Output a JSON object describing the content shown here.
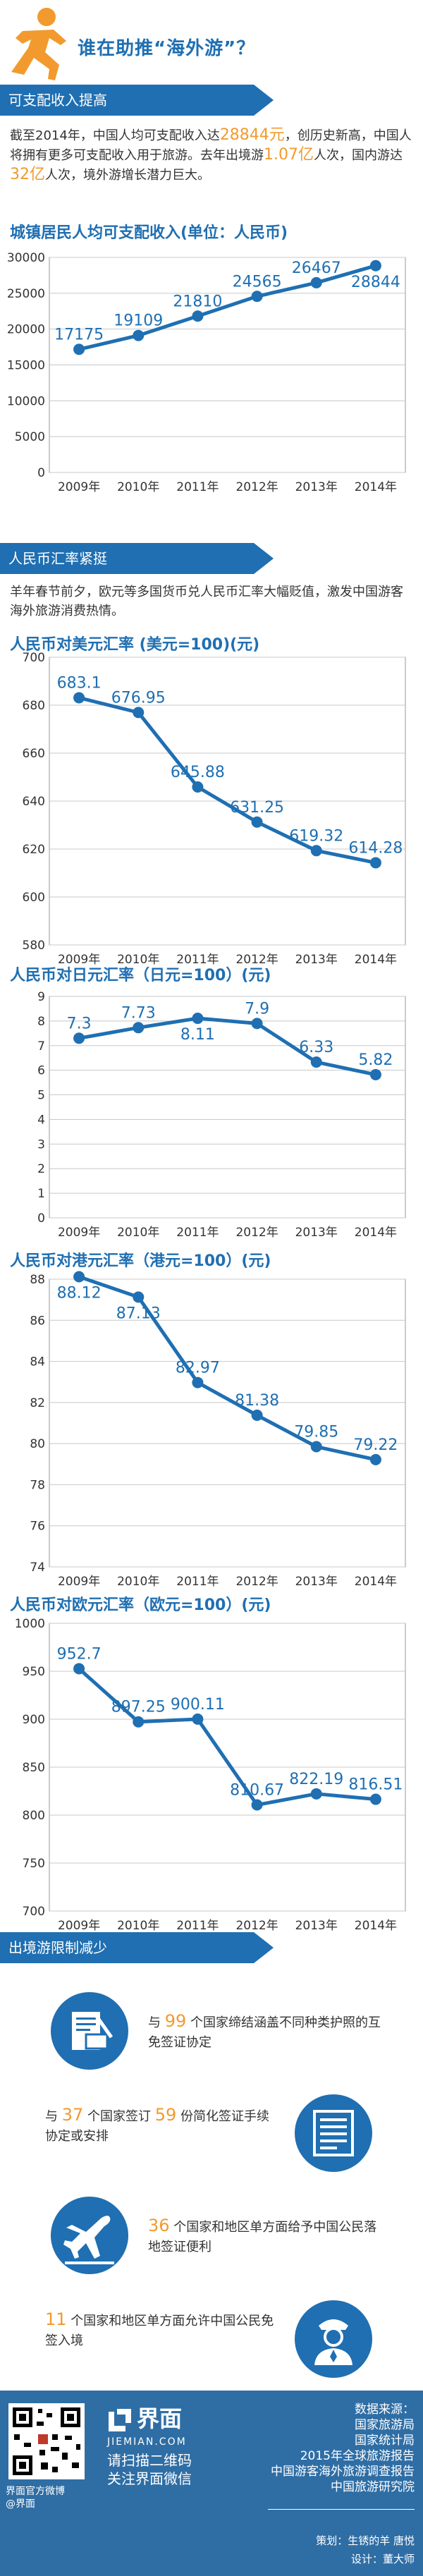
{
  "header": {
    "title": "谁在助推“海外游”？"
  },
  "sections": [
    {
      "label": "可支配收入提高"
    },
    {
      "label": "人民币汇率紧挺"
    },
    {
      "label": "出境游限制减少"
    }
  ],
  "income_para": {
    "p1": "截至2014年，中国人均可支配收入达",
    "v1": "28844元",
    "p2": "，创历史新高，中国人将拥有更多可支配收入用于旅游。去年出境游",
    "v2": "1.07亿",
    "p3": "人次，国内游达",
    "v3": "32亿",
    "p4": "人次，境外游增长潜力巨大。"
  },
  "rate_para": "羊年春节前夕，欧元等多国货币兑人民币汇率大幅贬值，激发中国游客海外旅游消费热情。",
  "chart_data": [
    {
      "type": "line",
      "title": "城镇居民人均可支配收入(单位：人民币)",
      "categories": [
        "2009年",
        "2010年",
        "2011年",
        "2012年",
        "2013年",
        "2014年"
      ],
      "values": [
        17175,
        19109,
        21810,
        24565,
        26467,
        28844
      ],
      "ylim": [
        0,
        30000
      ],
      "yticks": [
        0,
        5000,
        10000,
        15000,
        20000,
        25000,
        30000
      ]
    },
    {
      "type": "line",
      "title": "人民币对美元汇率 (美元=100)(元)",
      "categories": [
        "2009年",
        "2010年",
        "2011年",
        "2012年",
        "2013年",
        "2014年"
      ],
      "values": [
        683.1,
        676.95,
        645.88,
        631.25,
        619.32,
        614.28
      ],
      "ylim": [
        580,
        700
      ],
      "yticks": [
        580,
        600,
        620,
        640,
        660,
        680,
        700
      ]
    },
    {
      "type": "line",
      "title": "人民币对日元汇率（日元=100）(元)",
      "categories": [
        "2009年",
        "2010年",
        "2011年",
        "2012年",
        "2013年",
        "2014年"
      ],
      "values": [
        7.3,
        7.73,
        8.11,
        7.9,
        6.33,
        5.82
      ],
      "ylim": [
        0,
        9
      ],
      "yticks": [
        0,
        1,
        2,
        3,
        4,
        5,
        6,
        7,
        8,
        9
      ]
    },
    {
      "type": "line",
      "title": "人民币对港元汇率（港元=100）(元)",
      "categories": [
        "2009年",
        "2010年",
        "2011年",
        "2012年",
        "2013年",
        "2014年"
      ],
      "values": [
        88.12,
        87.13,
        82.97,
        81.38,
        79.85,
        79.22
      ],
      "ylim": [
        74,
        88
      ],
      "yticks": [
        74,
        76,
        78,
        80,
        82,
        84,
        86,
        88
      ]
    },
    {
      "type": "line",
      "title": "人民币对欧元汇率（欧元=100）(元)",
      "categories": [
        "2009年",
        "2010年",
        "2011年",
        "2012年",
        "2013年",
        "2014年"
      ],
      "values": [
        952.7,
        897.25,
        900.11,
        810.67,
        822.19,
        816.51
      ],
      "ylim": [
        700,
        1000
      ],
      "yticks": [
        700,
        750,
        800,
        850,
        900,
        950,
        1000
      ]
    }
  ],
  "items": [
    {
      "pre": "与 ",
      "num": "99",
      "post": " 个国家缔结涵盖不同种类护照的互免签证协定",
      "icon": "passport-icon"
    },
    {
      "pre": "与 ",
      "num": "37",
      "mid": " 个国家签订 ",
      "num2": "59",
      "post": " 份简化签证手续协定或安排",
      "icon": "document-icon"
    },
    {
      "pre": "",
      "num": "36",
      "post": " 个国家和地区单方面给予中国公民落地签证便利",
      "icon": "airplane-icon"
    },
    {
      "pre": "",
      "num": "11",
      "post": " 个国家和地区单方面允许中国公民免签入境",
      "icon": "officer-icon"
    }
  ],
  "footer": {
    "brand": "界面",
    "brand_en": "JIEMIAN.COM",
    "scan1": "请扫描二维码",
    "scan2": "关注界面微信",
    "weibo1": "界面官方微博",
    "weibo2": "@界面",
    "sources_title": "数据来源：",
    "sources": [
      "国家旅游局",
      "国家统计局",
      "2015年全球旅游报告",
      "中国游客海外旅游调查报告",
      "中国旅游研究院"
    ],
    "credit1": "策划：生锈的羊  唐悦",
    "credit2": "设计：董大师",
    "colors": {
      "brand": "#1f6fb2",
      "accent": "#f29a2e",
      "footer": "#2f6ea5"
    }
  }
}
